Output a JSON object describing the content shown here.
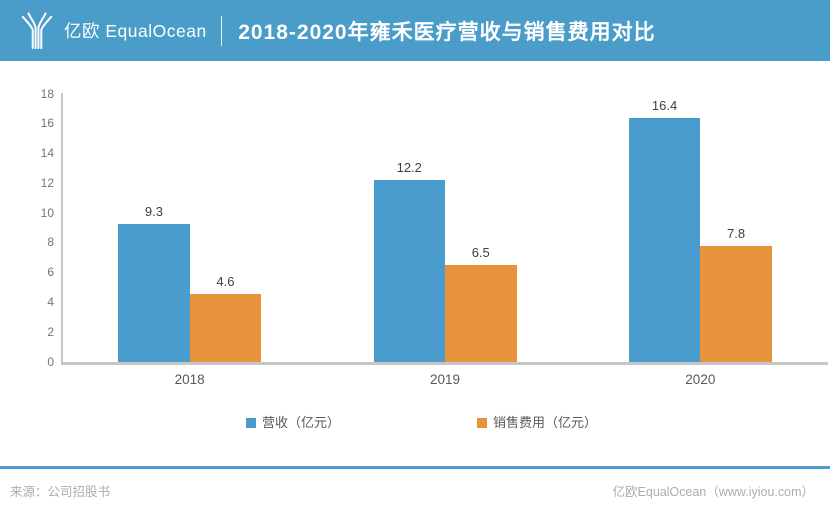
{
  "header": {
    "logo_text": "亿欧 EqualOcean",
    "title": "2018-2020年雍禾医疗营收与销售费用对比"
  },
  "chart_data": {
    "type": "bar",
    "categories": [
      "2018",
      "2019",
      "2020"
    ],
    "series": [
      {
        "id": "revenue",
        "name": "营收（亿元）",
        "values": [
          9.3,
          12.2,
          16.4
        ],
        "color": "#4a9bce"
      },
      {
        "id": "selling-expense",
        "name": "销售费用（亿元）",
        "values": [
          4.6,
          6.5,
          7.8
        ],
        "color": "#e8923c"
      }
    ],
    "title": "2018-2020年雍禾医疗营收与销售费用对比",
    "xlabel": "",
    "ylabel": "",
    "ylim": [
      0,
      18
    ],
    "ytick_step": 2,
    "grid": false,
    "legend_position": "bottom"
  },
  "footer": {
    "source": "来源：公司招股书",
    "credit": "亿欧EqualOcean（www.iyiou.com）"
  },
  "colors": {
    "header_bg": "#4a9cc9",
    "axis_line": "#c6c6c6",
    "divider_line": "#4e9ccb",
    "tick_label": "#737373",
    "value_label": "#3f3f3f",
    "category_label": "#595959",
    "legend_label": "#595959",
    "footer_text": "#adadad"
  }
}
